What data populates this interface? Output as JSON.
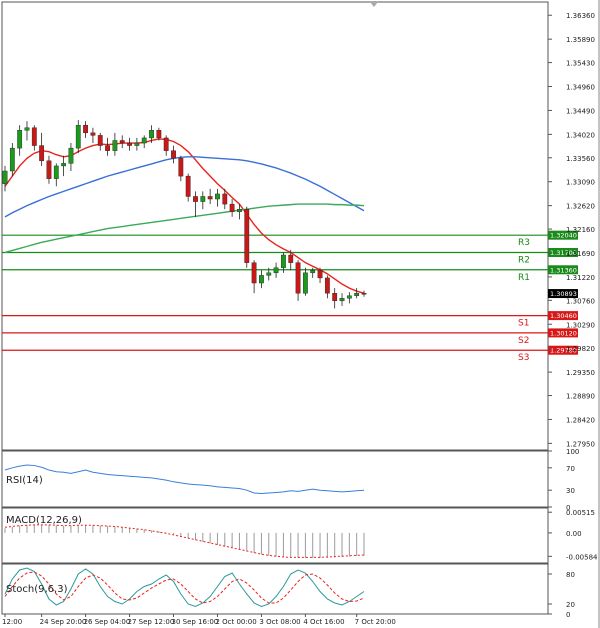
{
  "chart_data": [
    {
      "type": "candlestick",
      "panel": "price",
      "ylim": [
        1.2782,
        1.3662
      ],
      "y_ticks": [
        "1.36360",
        "1.35890",
        "1.35430",
        "1.34960",
        "1.34490",
        "1.34020",
        "1.33560",
        "1.33090",
        "1.32620",
        "1.32160",
        "1.31690",
        "1.31220",
        "1.30760",
        "1.30290",
        "1.29820",
        "1.29350",
        "1.28890",
        "1.28420",
        "1.27950"
      ],
      "current_price": "1.30893",
      "candles": [
        {
          "o": 1.3305,
          "h": 1.334,
          "l": 1.329,
          "c": 1.333
        },
        {
          "o": 1.333,
          "h": 1.3385,
          "l": 1.332,
          "c": 1.3375
        },
        {
          "o": 1.3375,
          "h": 1.342,
          "l": 1.336,
          "c": 1.341
        },
        {
          "o": 1.341,
          "h": 1.3428,
          "l": 1.339,
          "c": 1.3415
        },
        {
          "o": 1.3415,
          "h": 1.342,
          "l": 1.337,
          "c": 1.338
        },
        {
          "o": 1.338,
          "h": 1.3405,
          "l": 1.334,
          "c": 1.335
        },
        {
          "o": 1.335,
          "h": 1.336,
          "l": 1.3305,
          "c": 1.3315
        },
        {
          "o": 1.3315,
          "h": 1.3345,
          "l": 1.33,
          "c": 1.334
        },
        {
          "o": 1.334,
          "h": 1.336,
          "l": 1.332,
          "c": 1.3345
        },
        {
          "o": 1.3345,
          "h": 1.3385,
          "l": 1.333,
          "c": 1.3375
        },
        {
          "o": 1.3375,
          "h": 1.343,
          "l": 1.3365,
          "c": 1.342
        },
        {
          "o": 1.342,
          "h": 1.3428,
          "l": 1.3395,
          "c": 1.3405
        },
        {
          "o": 1.3405,
          "h": 1.3415,
          "l": 1.3385,
          "c": 1.34
        },
        {
          "o": 1.34,
          "h": 1.3405,
          "l": 1.337,
          "c": 1.338
        },
        {
          "o": 1.338,
          "h": 1.3395,
          "l": 1.336,
          "c": 1.337
        },
        {
          "o": 1.337,
          "h": 1.3405,
          "l": 1.336,
          "c": 1.339
        },
        {
          "o": 1.339,
          "h": 1.34,
          "l": 1.3375,
          "c": 1.3385
        },
        {
          "o": 1.3385,
          "h": 1.3395,
          "l": 1.337,
          "c": 1.338
        },
        {
          "o": 1.338,
          "h": 1.3395,
          "l": 1.337,
          "c": 1.3385
        },
        {
          "o": 1.3385,
          "h": 1.34,
          "l": 1.3375,
          "c": 1.3395
        },
        {
          "o": 1.3395,
          "h": 1.342,
          "l": 1.3385,
          "c": 1.341
        },
        {
          "o": 1.341,
          "h": 1.3415,
          "l": 1.339,
          "c": 1.3395
        },
        {
          "o": 1.3395,
          "h": 1.34,
          "l": 1.336,
          "c": 1.337
        },
        {
          "o": 1.337,
          "h": 1.338,
          "l": 1.3345,
          "c": 1.3355
        },
        {
          "o": 1.3355,
          "h": 1.336,
          "l": 1.331,
          "c": 1.332
        },
        {
          "o": 1.332,
          "h": 1.3325,
          "l": 1.327,
          "c": 1.328
        },
        {
          "o": 1.328,
          "h": 1.329,
          "l": 1.324,
          "c": 1.327
        },
        {
          "o": 1.327,
          "h": 1.329,
          "l": 1.3255,
          "c": 1.328
        },
        {
          "o": 1.328,
          "h": 1.3295,
          "l": 1.3265,
          "c": 1.3275
        },
        {
          "o": 1.3275,
          "h": 1.3295,
          "l": 1.326,
          "c": 1.3285
        },
        {
          "o": 1.3285,
          "h": 1.3295,
          "l": 1.3255,
          "c": 1.3265
        },
        {
          "o": 1.3265,
          "h": 1.3275,
          "l": 1.324,
          "c": 1.325
        },
        {
          "o": 1.325,
          "h": 1.3265,
          "l": 1.3235,
          "c": 1.3255
        },
        {
          "o": 1.3255,
          "h": 1.326,
          "l": 1.314,
          "c": 1.315
        },
        {
          "o": 1.315,
          "h": 1.3155,
          "l": 1.309,
          "c": 1.311
        },
        {
          "o": 1.311,
          "h": 1.3135,
          "l": 1.31,
          "c": 1.3125
        },
        {
          "o": 1.3125,
          "h": 1.314,
          "l": 1.3115,
          "c": 1.313
        },
        {
          "o": 1.313,
          "h": 1.315,
          "l": 1.312,
          "c": 1.314
        },
        {
          "o": 1.314,
          "h": 1.317,
          "l": 1.313,
          "c": 1.3165
        },
        {
          "o": 1.3165,
          "h": 1.3175,
          "l": 1.3135,
          "c": 1.315
        },
        {
          "o": 1.315,
          "h": 1.3155,
          "l": 1.3075,
          "c": 1.309
        },
        {
          "o": 1.309,
          "h": 1.314,
          "l": 1.3085,
          "c": 1.313
        },
        {
          "o": 1.313,
          "h": 1.314,
          "l": 1.312,
          "c": 1.3135
        },
        {
          "o": 1.3135,
          "h": 1.314,
          "l": 1.311,
          "c": 1.312
        },
        {
          "o": 1.312,
          "h": 1.3125,
          "l": 1.308,
          "c": 1.309
        },
        {
          "o": 1.309,
          "h": 1.31,
          "l": 1.306,
          "c": 1.3075
        },
        {
          "o": 1.3075,
          "h": 1.309,
          "l": 1.3065,
          "c": 1.308
        },
        {
          "o": 1.308,
          "h": 1.3092,
          "l": 1.307,
          "c": 1.3085
        },
        {
          "o": 1.3085,
          "h": 1.31,
          "l": 1.308,
          "c": 1.309
        },
        {
          "o": 1.309,
          "h": 1.3095,
          "l": 1.3083,
          "c": 1.3089
        }
      ],
      "moving_averages": [
        {
          "color": "#e8231f",
          "values": [
            1.33,
            1.332,
            1.334,
            1.3355,
            1.3365,
            1.337,
            1.3368,
            1.3362,
            1.3358,
            1.336,
            1.3368,
            1.3375,
            1.338,
            1.3383,
            1.3382,
            1.3383,
            1.3385,
            1.3385,
            1.3385,
            1.3386,
            1.339,
            1.3393,
            1.3392,
            1.3388,
            1.338,
            1.3368,
            1.3352,
            1.3335,
            1.332,
            1.3305,
            1.3292,
            1.3278,
            1.3265,
            1.3245,
            1.3225,
            1.3208,
            1.3195,
            1.3185,
            1.3177,
            1.317,
            1.316,
            1.315,
            1.3143,
            1.3136,
            1.3128,
            1.3118,
            1.3108,
            1.31,
            1.3094,
            1.309
          ]
        },
        {
          "color": "#3a6fd8",
          "values": [
            1.324,
            1.3248,
            1.3255,
            1.3262,
            1.3268,
            1.3274,
            1.328,
            1.3285,
            1.329,
            1.3295,
            1.33,
            1.3305,
            1.331,
            1.3315,
            1.332,
            1.3324,
            1.3328,
            1.3332,
            1.3336,
            1.334,
            1.3344,
            1.3348,
            1.3352,
            1.3355,
            1.3357,
            1.3358,
            1.3358,
            1.3357,
            1.3356,
            1.3355,
            1.3354,
            1.3353,
            1.3352,
            1.335,
            1.3347,
            1.3344,
            1.334,
            1.3336,
            1.3331,
            1.3326,
            1.332,
            1.3314,
            1.3307,
            1.33,
            1.3292,
            1.3284,
            1.3276,
            1.3268,
            1.326,
            1.3252
          ]
        },
        {
          "color": "#3aaa5a",
          "values": [
            1.317,
            1.3174,
            1.3178,
            1.3182,
            1.3186,
            1.319,
            1.3193,
            1.3196,
            1.3199,
            1.3202,
            1.3205,
            1.3208,
            1.3211,
            1.3214,
            1.3217,
            1.3219,
            1.3221,
            1.3223,
            1.3225,
            1.3227,
            1.3229,
            1.3231,
            1.3233,
            1.3235,
            1.3237,
            1.3239,
            1.3241,
            1.3243,
            1.3245,
            1.3247,
            1.3249,
            1.3251,
            1.3253,
            1.3255,
            1.3257,
            1.3259,
            1.3261,
            1.3262,
            1.3263,
            1.3264,
            1.3265,
            1.3265,
            1.3265,
            1.3265,
            1.3265,
            1.3264,
            1.3264,
            1.3263,
            1.3263,
            1.3262
          ]
        }
      ],
      "levels": [
        {
          "label": "R3",
          "value": 1.3204,
          "value_label": "1.32040",
          "color": "#1a8a1a"
        },
        {
          "label": "R2",
          "value": 1.317,
          "value_label": "1.31700",
          "color": "#1a8a1a"
        },
        {
          "label": "R1",
          "value": 1.3136,
          "value_label": "1.31360",
          "color": "#1a8a1a"
        },
        {
          "label": "S1",
          "value": 1.3046,
          "value_label": "1.30460",
          "color": "#d81818"
        },
        {
          "label": "S2",
          "value": 1.3012,
          "value_label": "1.30120",
          "color": "#d81818"
        },
        {
          "label": "S3",
          "value": 1.2978,
          "value_label": "1.29780",
          "color": "#d81818"
        }
      ],
      "x_ticks": [
        "12:00",
        "24 Sep 20:00",
        "26 Sep 04:00",
        "27 Sep 12:00",
        "30 Sep 16:00",
        "2 Oct 00:00",
        "3 Oct 08:00",
        "4 Oct 16:00",
        "7 Oct 20:00"
      ]
    },
    {
      "type": "line",
      "panel": "rsi",
      "title": "RSI(14)",
      "ylim": [
        0,
        100
      ],
      "y_ticks": [
        "100",
        "70",
        "30",
        "0"
      ],
      "color": "#3a7fd8",
      "values": [
        66,
        70,
        73,
        75,
        74,
        71,
        66,
        63,
        62,
        60,
        63,
        66,
        62,
        60,
        58,
        57,
        56,
        55,
        54,
        53,
        52,
        50,
        48,
        45,
        43,
        41,
        40,
        39,
        38,
        36,
        35,
        34,
        33,
        30,
        25,
        24,
        25,
        26,
        27,
        29,
        28,
        30,
        32,
        30,
        29,
        28,
        27,
        28,
        29,
        30
      ]
    },
    {
      "type": "bar",
      "panel": "macd",
      "title": "MACD(12,26,9)",
      "ylim": [
        -0.0075,
        0.0062
      ],
      "y_ticks": [
        "0.00515",
        "0.00",
        "-0.00584"
      ],
      "bar_color": "#9a9a9a",
      "signal_color": "#e8231f",
      "values": [
        0.0012,
        0.0015,
        0.0018,
        0.002,
        0.0021,
        0.0021,
        0.002,
        0.0019,
        0.0018,
        0.0018,
        0.0019,
        0.0019,
        0.0019,
        0.0018,
        0.0017,
        0.0016,
        0.0014,
        0.0012,
        0.001,
        0.0008,
        0.0006,
        0.0004,
        0.0001,
        -0.0003,
        -0.0008,
        -0.0013,
        -0.0018,
        -0.0022,
        -0.0026,
        -0.003,
        -0.0034,
        -0.0038,
        -0.0042,
        -0.0046,
        -0.005,
        -0.0054,
        -0.0057,
        -0.0059,
        -0.0061,
        -0.0062,
        -0.0062,
        -0.0063,
        -0.0063,
        -0.0063,
        -0.0062,
        -0.0061,
        -0.006,
        -0.0059,
        -0.0058,
        -0.0057
      ],
      "signal": [
        0.0014,
        0.0016,
        0.0018,
        0.0019,
        0.002,
        0.002,
        0.002,
        0.0019,
        0.0018,
        0.0018,
        0.0019,
        0.0019,
        0.0019,
        0.0018,
        0.0017,
        0.0016,
        0.0014,
        0.0012,
        0.001,
        0.0008,
        0.0005,
        0.0002,
        -0.0001,
        -0.0005,
        -0.0009,
        -0.0013,
        -0.0017,
        -0.0021,
        -0.0025,
        -0.0029,
        -0.0033,
        -0.0037,
        -0.0041,
        -0.0045,
        -0.0049,
        -0.0053,
        -0.0056,
        -0.0058,
        -0.006,
        -0.0061,
        -0.0061,
        -0.0061,
        -0.0061,
        -0.0061,
        -0.006,
        -0.0059,
        -0.0058,
        -0.0057,
        -0.0056,
        -0.0055
      ]
    },
    {
      "type": "line",
      "panel": "stoch",
      "title": "Stoch(9,6,3)",
      "ylim": [
        0,
        100
      ],
      "y_ticks": [
        "80",
        "20",
        "0"
      ],
      "colors": [
        "#2a9a9a",
        "#e8231f"
      ],
      "series": [
        {
          "values": [
            40,
            70,
            88,
            92,
            85,
            60,
            30,
            18,
            25,
            50,
            80,
            90,
            80,
            55,
            35,
            25,
            20,
            30,
            45,
            55,
            60,
            70,
            78,
            65,
            40,
            20,
            15,
            22,
            35,
            55,
            75,
            82,
            60,
            40,
            22,
            15,
            20,
            35,
            55,
            80,
            88,
            82,
            65,
            45,
            30,
            22,
            18,
            25,
            35,
            45
          ]
        },
        {
          "values": [
            35,
            55,
            72,
            82,
            84,
            76,
            60,
            40,
            28,
            35,
            55,
            72,
            78,
            72,
            58,
            42,
            30,
            28,
            32,
            42,
            52,
            60,
            68,
            70,
            60,
            45,
            30,
            22,
            25,
            35,
            50,
            65,
            70,
            62,
            48,
            32,
            22,
            22,
            32,
            48,
            65,
            78,
            80,
            72,
            58,
            42,
            30,
            25,
            26,
            32
          ]
        }
      ]
    }
  ]
}
